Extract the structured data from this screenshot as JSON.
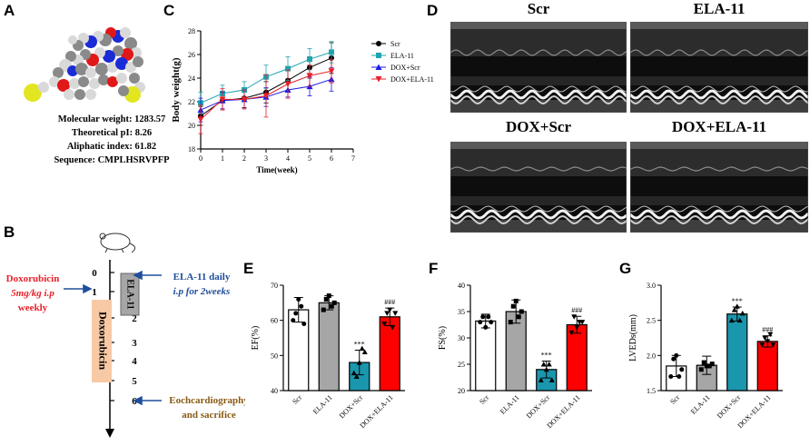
{
  "panels": {
    "A": "A",
    "B": "B",
    "C": "C",
    "D": "D",
    "E": "E",
    "F": "F",
    "G": "G"
  },
  "molecule": {
    "lines": [
      "Molecular weight: 1283.57",
      "Theoretical pI: 8.26",
      "Aliphatic index: 61.82",
      "Sequence: CMPLHSRVPFP"
    ]
  },
  "timeline": {
    "weeks": [
      "0",
      "1",
      "2",
      "3",
      "4",
      "5",
      "6"
    ],
    "drug_label": [
      "Doxorubicin",
      "5mg/kg i.p",
      "weekly"
    ],
    "ela_box": "ELA-11",
    "dox_box": "Doxorubicin",
    "ela_note": [
      "ELA-11 daily",
      "i.p for 2weeks"
    ],
    "end_note": [
      "Eochcardiography",
      "and sacrifice"
    ],
    "colors": {
      "drug": "#e8202a",
      "ela": "#1f4e9c",
      "end": "#8a5a14",
      "ela_box": "#a6a6a6",
      "dox_box": "#f8c9a5"
    }
  },
  "chart_data": [
    {
      "type": "line",
      "panel": "C",
      "xlabel": "Time(week)",
      "ylabel": "Body weight(g)",
      "xlim": [
        0,
        7
      ],
      "ylim": [
        18,
        28
      ],
      "xticks": [
        "0",
        "1",
        "2",
        "3",
        "4",
        "5",
        "6",
        "7"
      ],
      "yticks": [
        "18",
        "20",
        "22",
        "24",
        "26",
        "28"
      ],
      "x": [
        0,
        1,
        2,
        3,
        4,
        5,
        6
      ],
      "series": [
        {
          "name": "Scr",
          "color": "#000000",
          "marker": "circle",
          "values": [
            20.8,
            22.1,
            22.3,
            22.8,
            23.8,
            24.9,
            25.7
          ],
          "err": [
            0.8,
            0.8,
            0.8,
            0.9,
            0.9,
            0.9,
            1.3
          ]
        },
        {
          "name": "ELA-11",
          "color": "#1fa5b0",
          "marker": "square",
          "values": [
            21.9,
            22.7,
            23.0,
            24.1,
            24.8,
            25.6,
            26.2
          ],
          "err": [
            0.9,
            0.7,
            0.7,
            1.0,
            1.0,
            0.9,
            0.9
          ]
        },
        {
          "name": "DOX+Scr",
          "color": "#1a1ae0",
          "marker": "triangle-up",
          "values": [
            21.3,
            22.1,
            22.2,
            22.4,
            23.0,
            23.3,
            23.9
          ],
          "err": [
            1.0,
            0.7,
            0.8,
            0.8,
            0.6,
            0.8,
            1.0
          ]
        },
        {
          "name": "DOX+ELA-11",
          "color": "#e8202a",
          "marker": "triangle-down",
          "values": [
            20.5,
            22.2,
            22.2,
            22.5,
            23.5,
            24.2,
            24.6
          ],
          "err": [
            1.2,
            0.9,
            0.8,
            1.8,
            1.2,
            0.9,
            1.0
          ]
        }
      ]
    },
    {
      "type": "bar",
      "panel": "E",
      "ylabel": "EF(%)",
      "ylim": [
        40,
        70
      ],
      "yticks": [
        "40",
        "50",
        "60",
        "70"
      ],
      "categories": [
        "Scr",
        "ELA-11",
        "DOX+Scr",
        "DOX+ELA-11"
      ],
      "values": [
        63,
        65,
        48,
        61
      ],
      "err": [
        3.5,
        2,
        3.5,
        2.5
      ],
      "points": [
        [
          60,
          62,
          66,
          64,
          59
        ],
        [
          63,
          66,
          67,
          64,
          65
        ],
        [
          45,
          44,
          48,
          52,
          51
        ],
        [
          59,
          62,
          63,
          58,
          62
        ]
      ],
      "annotations": [
        "",
        "",
        "***",
        "###"
      ]
    },
    {
      "type": "bar",
      "panel": "F",
      "ylabel": "FS(%)",
      "ylim": [
        20,
        40
      ],
      "yticks": [
        "20",
        "25",
        "30",
        "35",
        "40"
      ],
      "categories": [
        "Scr",
        "ELA-11",
        "DOX+Scr",
        "DOX+ELA-11"
      ],
      "values": [
        33.2,
        35,
        24,
        32.5
      ],
      "err": [
        1.3,
        2.2,
        1.6,
        1.6
      ],
      "points": [
        [
          33,
          34,
          32,
          34,
          33
        ],
        [
          33,
          36,
          37,
          34,
          35
        ],
        [
          22,
          25,
          24,
          25,
          22
        ],
        [
          31,
          34,
          32,
          33,
          33
        ]
      ],
      "annotations": [
        "",
        "",
        "***",
        "###"
      ]
    },
    {
      "type": "bar",
      "panel": "G",
      "ylabel": "LVEDs(mm)",
      "ylim": [
        1.5,
        3.0
      ],
      "yticks": [
        "1.5",
        "2.0",
        "2.5",
        "3.0"
      ],
      "categories": [
        "Scr",
        "ELA-11",
        "DOX+Scr",
        "DOX+ELA-11"
      ],
      "values": [
        1.85,
        1.86,
        2.59,
        2.2
      ],
      "err": [
        0.15,
        0.13,
        0.1,
        0.08
      ],
      "points": [
        [
          1.7,
          1.95,
          2.0,
          1.7,
          1.8
        ],
        [
          1.8,
          1.9,
          1.85,
          1.85,
          1.88
        ],
        [
          2.5,
          2.65,
          2.7,
          2.5,
          2.6
        ],
        [
          2.15,
          2.25,
          2.2,
          2.3,
          2.15
        ]
      ],
      "annotations": [
        "",
        "",
        "***",
        "###"
      ]
    }
  ],
  "bar_colors": [
    "#ffffff",
    "#a6a6a6",
    "#1a96ad",
    "#ff0000"
  ],
  "echo": {
    "titles": [
      "Scr",
      "ELA-11",
      "DOX+Scr",
      "DOX+ELA-11"
    ]
  }
}
